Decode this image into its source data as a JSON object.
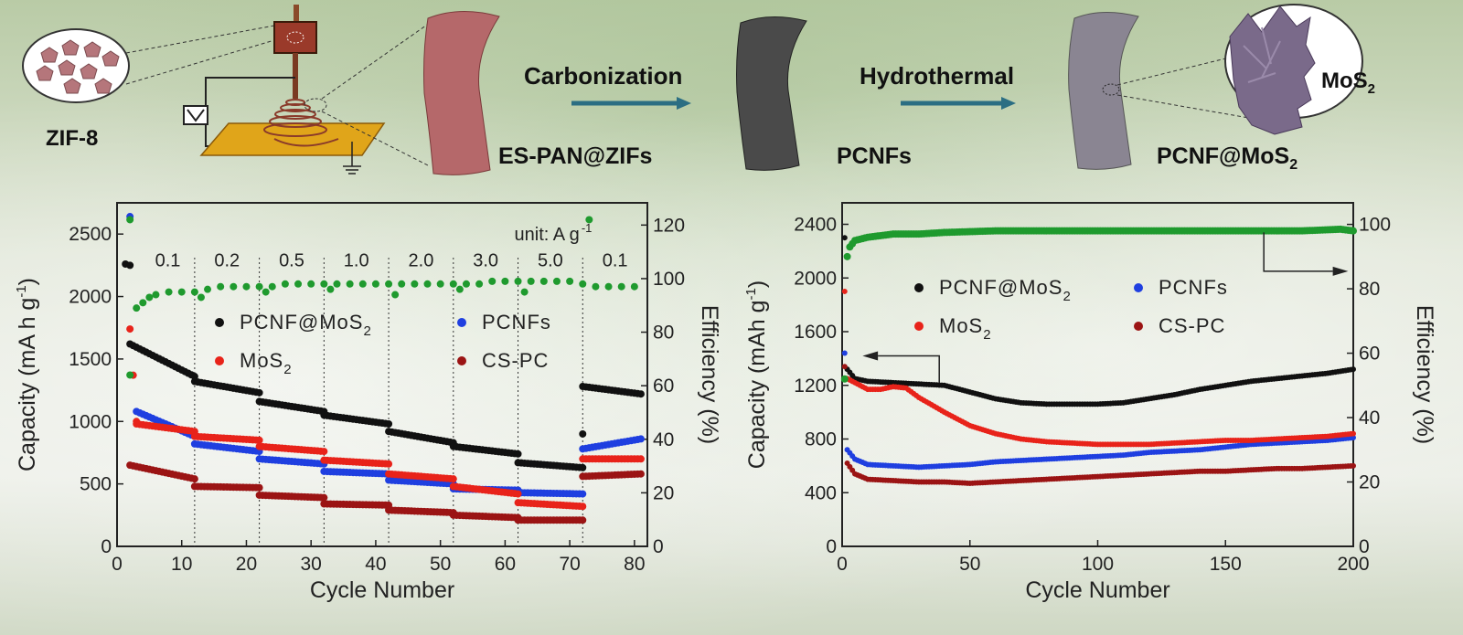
{
  "schematic": {
    "labels": {
      "zif8": "ZIF-8",
      "es_pan": "ES-PAN@ZIFs",
      "pcnfs": "PCNFs",
      "pcnf_mos2": "PCNF@MoS",
      "mos2": "MoS",
      "subscript": "2"
    },
    "steps": {
      "carbonization": "Carbonization",
      "hydrothermal": "Hydrothermal"
    },
    "colors": {
      "zif_particle": "#b5767b",
      "fiber_red": "#b5686a",
      "fiber_dark": "#4a4a4a",
      "fiber_gray": "#8a8592",
      "mos2_flake": "#7a6a8a",
      "arrow": "#2b6e83",
      "substrate": "#e0a51a"
    },
    "icons": [
      "zif8-particles-icon",
      "electrospinning-setup-icon",
      "fiber-icon",
      "process-arrow-icon"
    ]
  },
  "chart_data": [
    {
      "type": "scatter",
      "name": "rate-performance",
      "xlabel": "Cycle Number",
      "ylabel": "Capacity (mA h g",
      "ylabel_sup": "-1",
      "ylabel_tail": ")",
      "y2label": "Efficiency (%)",
      "xlim": [
        0,
        82
      ],
      "ylim": [
        0,
        2750
      ],
      "y2lim": [
        0,
        128.3
      ],
      "xticks": [
        0,
        10,
        20,
        30,
        40,
        50,
        60,
        70,
        80
      ],
      "yticks": [
        0,
        500,
        1000,
        1500,
        2000,
        2500
      ],
      "y2ticks": [
        0,
        20,
        40,
        60,
        80,
        100,
        120
      ],
      "unit_note": "unit: A g",
      "unit_sup": "-1",
      "rates": [
        "0.1",
        "0.2",
        "0.5",
        "1.0",
        "2.0",
        "3.0",
        "5.0",
        "0.1"
      ],
      "rate_dividers": [
        12,
        22,
        32,
        42,
        52,
        62,
        72
      ],
      "legend": [
        {
          "label": "PCNF@MoS",
          "sub": "2",
          "color": "#111111"
        },
        {
          "label": "PCNFs",
          "sub": "",
          "color": "#1f3fe0"
        },
        {
          "label": "MoS",
          "sub": "2",
          "color": "#e8231a"
        },
        {
          "label": "CS-PC",
          "sub": "",
          "color": "#9b1414"
        }
      ],
      "series": [
        {
          "name": "PCNF@MoS2",
          "color": "#111111",
          "segments": [
            [
              2,
              1620,
              12,
              1360
            ],
            [
              12,
              1320,
              22,
              1230
            ],
            [
              22,
              1160,
              32,
              1080
            ],
            [
              32,
              1050,
              42,
              980
            ],
            [
              42,
              920,
              52,
              830
            ],
            [
              52,
              800,
              62,
              740
            ],
            [
              62,
              670,
              72,
              630
            ],
            [
              72,
              1280,
              81,
              1220
            ]
          ],
          "extra_points": [
            [
              2,
              2250
            ],
            [
              72,
              900
            ]
          ]
        },
        {
          "name": "PCNFs",
          "color": "#1f3fe0",
          "segments": [
            [
              3,
              1080,
              12,
              880
            ],
            [
              12,
              820,
              22,
              760
            ],
            [
              22,
              700,
              32,
              660
            ],
            [
              32,
              600,
              42,
              580
            ],
            [
              42,
              530,
              52,
              500
            ],
            [
              52,
              460,
              62,
              450
            ],
            [
              62,
              430,
              72,
              420
            ],
            [
              72,
              780,
              81,
              860
            ]
          ],
          "extra_points": [
            [
              2,
              2640
            ]
          ]
        },
        {
          "name": "MoS2",
          "color": "#e8231a",
          "segments": [
            [
              2,
              1740,
              3,
              1000
            ],
            [
              3,
              980,
              12,
              920
            ],
            [
              12,
              880,
              22,
              850
            ],
            [
              22,
              800,
              32,
              760
            ],
            [
              32,
              690,
              42,
              660
            ],
            [
              42,
              580,
              52,
              540
            ],
            [
              52,
              480,
              62,
              420
            ],
            [
              62,
              350,
              72,
              320
            ],
            [
              72,
              700,
              81,
              700
            ]
          ],
          "extra_points": []
        },
        {
          "name": "CS-PC",
          "color": "#9b1414",
          "segments": [
            [
              2,
              650,
              12,
              540
            ],
            [
              12,
              480,
              22,
              470
            ],
            [
              22,
              410,
              32,
              390
            ],
            [
              32,
              340,
              42,
              330
            ],
            [
              42,
              290,
              52,
              270
            ],
            [
              52,
              250,
              62,
              230
            ],
            [
              62,
              210,
              72,
              210
            ],
            [
              72,
              560,
              81,
              580
            ]
          ],
          "extra_points": []
        }
      ],
      "efficiency": {
        "color": "#1f9a2e",
        "points": [
          [
            2,
            122
          ],
          [
            2,
            64
          ],
          [
            3,
            89
          ],
          [
            4,
            91
          ],
          [
            5,
            93
          ],
          [
            6,
            94
          ],
          [
            8,
            95
          ],
          [
            10,
            95
          ],
          [
            12,
            95
          ],
          [
            13,
            93
          ],
          [
            14,
            96
          ],
          [
            16,
            97
          ],
          [
            18,
            97
          ],
          [
            20,
            97
          ],
          [
            22,
            97
          ],
          [
            23,
            95
          ],
          [
            24,
            97
          ],
          [
            26,
            98
          ],
          [
            28,
            98
          ],
          [
            30,
            98
          ],
          [
            32,
            98
          ],
          [
            33,
            96
          ],
          [
            34,
            98
          ],
          [
            36,
            98
          ],
          [
            38,
            98
          ],
          [
            40,
            98
          ],
          [
            42,
            98
          ],
          [
            43,
            94
          ],
          [
            44,
            98
          ],
          [
            46,
            98
          ],
          [
            48,
            98
          ],
          [
            50,
            98
          ],
          [
            52,
            98
          ],
          [
            53,
            96
          ],
          [
            54,
            98
          ],
          [
            56,
            98
          ],
          [
            58,
            99
          ],
          [
            60,
            99
          ],
          [
            62,
            99
          ],
          [
            63,
            95
          ],
          [
            64,
            99
          ],
          [
            66,
            99
          ],
          [
            68,
            99
          ],
          [
            70,
            99
          ],
          [
            72,
            98
          ],
          [
            73,
            122
          ],
          [
            74,
            97
          ],
          [
            76,
            97
          ],
          [
            78,
            97
          ],
          [
            80,
            97
          ]
        ]
      }
    },
    {
      "type": "scatter",
      "name": "cycling-performance",
      "xlabel": "Cycle Number",
      "ylabel": "Capacity (mAh g",
      "ylabel_sup": "-1",
      "ylabel_tail": ")",
      "y2label": "Efficiency (%)",
      "xlim": [
        0,
        200
      ],
      "ylim": [
        0,
        2560
      ],
      "y2lim": [
        0,
        106.7
      ],
      "xticks": [
        0,
        50,
        100,
        150,
        200
      ],
      "yticks": [
        0,
        400,
        800,
        1200,
        1600,
        2000,
        2400
      ],
      "y2ticks": [
        0,
        20,
        40,
        60,
        80,
        100
      ],
      "legend": [
        {
          "label": "PCNF@MoS",
          "sub": "2",
          "color": "#111111"
        },
        {
          "label": "PCNFs",
          "sub": "",
          "color": "#1f3fe0"
        },
        {
          "label": "MoS",
          "sub": "2",
          "color": "#e8231a"
        },
        {
          "label": "CS-PC",
          "sub": "",
          "color": "#9b1414"
        }
      ],
      "series": [
        {
          "name": "PCNF@MoS2",
          "color": "#111111",
          "points": [
            [
              1,
              2300
            ],
            [
              2,
              1320
            ],
            [
              5,
              1250
            ],
            [
              10,
              1230
            ],
            [
              20,
              1220
            ],
            [
              30,
              1210
            ],
            [
              40,
              1200
            ],
            [
              50,
              1150
            ],
            [
              60,
              1100
            ],
            [
              70,
              1070
            ],
            [
              80,
              1060
            ],
            [
              90,
              1060
            ],
            [
              100,
              1060
            ],
            [
              110,
              1070
            ],
            [
              120,
              1100
            ],
            [
              130,
              1130
            ],
            [
              140,
              1170
            ],
            [
              150,
              1200
            ],
            [
              160,
              1230
            ],
            [
              170,
              1250
            ],
            [
              180,
              1270
            ],
            [
              190,
              1290
            ],
            [
              200,
              1320
            ]
          ]
        },
        {
          "name": "PCNFs",
          "color": "#1f3fe0",
          "points": [
            [
              1,
              1440
            ],
            [
              2,
              720
            ],
            [
              5,
              650
            ],
            [
              10,
              610
            ],
            [
              20,
              600
            ],
            [
              30,
              590
            ],
            [
              40,
              600
            ],
            [
              50,
              610
            ],
            [
              60,
              630
            ],
            [
              70,
              640
            ],
            [
              80,
              650
            ],
            [
              90,
              660
            ],
            [
              100,
              670
            ],
            [
              110,
              680
            ],
            [
              120,
              700
            ],
            [
              130,
              710
            ],
            [
              140,
              720
            ],
            [
              150,
              740
            ],
            [
              160,
              760
            ],
            [
              170,
              770
            ],
            [
              180,
              780
            ],
            [
              190,
              790
            ],
            [
              200,
              810
            ]
          ]
        },
        {
          "name": "MoS2",
          "color": "#e8231a",
          "points": [
            [
              1,
              1900
            ],
            [
              2,
              1250
            ],
            [
              5,
              1220
            ],
            [
              10,
              1170
            ],
            [
              15,
              1170
            ],
            [
              20,
              1190
            ],
            [
              25,
              1180
            ],
            [
              30,
              1110
            ],
            [
              40,
              1000
            ],
            [
              50,
              900
            ],
            [
              60,
              840
            ],
            [
              70,
              800
            ],
            [
              80,
              780
            ],
            [
              90,
              770
            ],
            [
              100,
              760
            ],
            [
              110,
              760
            ],
            [
              120,
              760
            ],
            [
              130,
              770
            ],
            [
              140,
              780
            ],
            [
              150,
              790
            ],
            [
              160,
              790
            ],
            [
              170,
              800
            ],
            [
              180,
              810
            ],
            [
              190,
              820
            ],
            [
              200,
              840
            ]
          ]
        },
        {
          "name": "CS-PC",
          "color": "#9b1414",
          "points": [
            [
              1,
              1340
            ],
            [
              2,
              620
            ],
            [
              5,
              540
            ],
            [
              10,
              500
            ],
            [
              20,
              490
            ],
            [
              30,
              480
            ],
            [
              40,
              480
            ],
            [
              50,
              470
            ],
            [
              60,
              480
            ],
            [
              70,
              490
            ],
            [
              80,
              500
            ],
            [
              90,
              510
            ],
            [
              100,
              520
            ],
            [
              110,
              530
            ],
            [
              120,
              540
            ],
            [
              130,
              550
            ],
            [
              140,
              560
            ],
            [
              150,
              560
            ],
            [
              160,
              570
            ],
            [
              170,
              580
            ],
            [
              180,
              580
            ],
            [
              190,
              590
            ],
            [
              200,
              600
            ]
          ]
        }
      ],
      "efficiency": {
        "color": "#1f9a2e",
        "points": [
          [
            1,
            52
          ],
          [
            2,
            90
          ],
          [
            3,
            93
          ],
          [
            5,
            95
          ],
          [
            10,
            96
          ],
          [
            20,
            97
          ],
          [
            30,
            97
          ],
          [
            40,
            97.5
          ],
          [
            60,
            98
          ],
          [
            80,
            98
          ],
          [
            100,
            98
          ],
          [
            120,
            98
          ],
          [
            140,
            98
          ],
          [
            160,
            98
          ],
          [
            180,
            98
          ],
          [
            195,
            98.5
          ],
          [
            200,
            98
          ]
        ]
      }
    }
  ]
}
